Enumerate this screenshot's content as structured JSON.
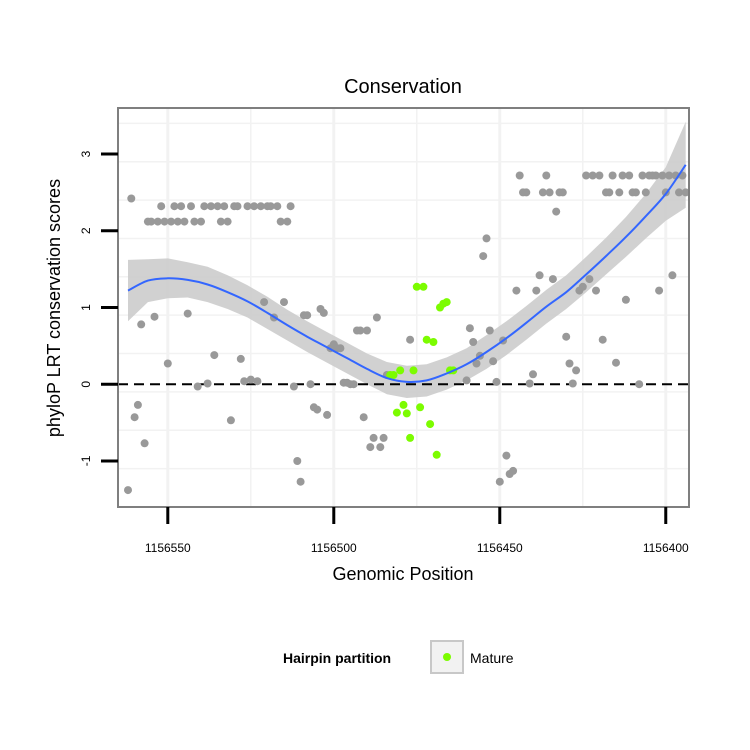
{
  "chart_data": {
    "type": "scatter",
    "title": "Conservation",
    "xlabel": "Genomic Position",
    "ylabel": "phyloP LRT conservation scores",
    "x_reversed": true,
    "xlim": [
      1156565,
      1156393
    ],
    "ylim": [
      -1.6,
      3.6
    ],
    "x_ticks": [
      1156550,
      1156500,
      1156450,
      1156400
    ],
    "x_tick_labels": [
      "1156550",
      "1156500",
      "1156450",
      "1156400"
    ],
    "y_ticks": [
      -1,
      0,
      1,
      2,
      3
    ],
    "y_tick_labels": [
      "-1",
      "0",
      "1",
      "2",
      "3"
    ],
    "reference_line": {
      "y": 0,
      "style": "dashed"
    },
    "grid": true,
    "legend": {
      "title": "Hairpin partition",
      "position": "bottom",
      "entries": [
        {
          "label": "Mature",
          "color": "#7cfc00"
        }
      ]
    },
    "colors": {
      "other": "#999999",
      "mature": "#7cfc00",
      "smooth_line": "#3366ff",
      "ribbon": "#cccccc",
      "panel_border": "#7f7f7f",
      "grid": "#f2f2f2"
    },
    "series": [
      {
        "name": "Other",
        "color": "#999999",
        "points": [
          [
            1156562,
            -1.38
          ],
          [
            1156561,
            2.42
          ],
          [
            1156560,
            -0.43
          ],
          [
            1156559,
            -0.27
          ],
          [
            1156558,
            0.78
          ],
          [
            1156557,
            -0.77
          ],
          [
            1156556,
            2.12
          ],
          [
            1156555,
            2.12
          ],
          [
            1156554,
            0.88
          ],
          [
            1156553,
            2.12
          ],
          [
            1156552,
            2.32
          ],
          [
            1156551,
            2.12
          ],
          [
            1156550,
            0.27
          ],
          [
            1156549,
            2.12
          ],
          [
            1156548,
            2.32
          ],
          [
            1156547,
            2.12
          ],
          [
            1156546,
            2.32
          ],
          [
            1156545,
            2.12
          ],
          [
            1156544,
            0.92
          ],
          [
            1156543,
            2.32
          ],
          [
            1156542,
            2.12
          ],
          [
            1156541,
            -0.03
          ],
          [
            1156540,
            2.12
          ],
          [
            1156539,
            2.32
          ],
          [
            1156538,
            0.01
          ],
          [
            1156537,
            2.32
          ],
          [
            1156536,
            0.38
          ],
          [
            1156535,
            2.32
          ],
          [
            1156534,
            2.12
          ],
          [
            1156533,
            2.32
          ],
          [
            1156532,
            2.12
          ],
          [
            1156531,
            -0.47
          ],
          [
            1156530,
            2.32
          ],
          [
            1156529,
            2.32
          ],
          [
            1156528,
            0.33
          ],
          [
            1156527,
            0.04
          ],
          [
            1156526,
            2.32
          ],
          [
            1156525,
            0.06
          ],
          [
            1156524,
            2.32
          ],
          [
            1156523,
            0.04
          ],
          [
            1156522,
            2.32
          ],
          [
            1156521,
            1.07
          ],
          [
            1156520,
            2.32
          ],
          [
            1156519,
            2.32
          ],
          [
            1156518,
            0.87
          ],
          [
            1156517,
            2.32
          ],
          [
            1156516,
            2.12
          ],
          [
            1156515,
            1.07
          ],
          [
            1156514,
            2.12
          ],
          [
            1156513,
            2.32
          ],
          [
            1156512,
            -0.03
          ],
          [
            1156511,
            -1.0
          ],
          [
            1156510,
            -1.27
          ],
          [
            1156509,
            0.9
          ],
          [
            1156508,
            0.9
          ],
          [
            1156507,
            0.0
          ],
          [
            1156506,
            -0.3
          ],
          [
            1156505,
            -0.33
          ],
          [
            1156504,
            0.98
          ],
          [
            1156503,
            0.93
          ],
          [
            1156502,
            -0.4
          ],
          [
            1156501,
            0.47
          ],
          [
            1156500,
            0.52
          ],
          [
            1156499,
            0.47
          ],
          [
            1156498,
            0.47
          ],
          [
            1156497,
            0.02
          ],
          [
            1156496,
            0.02
          ],
          [
            1156495,
            0.0
          ],
          [
            1156494,
            0.0
          ],
          [
            1156493,
            0.7
          ],
          [
            1156492,
            0.7
          ],
          [
            1156491,
            -0.43
          ],
          [
            1156490,
            0.7
          ],
          [
            1156489,
            -0.82
          ],
          [
            1156488,
            -0.7
          ],
          [
            1156487,
            0.87
          ],
          [
            1156486,
            -0.82
          ],
          [
            1156485,
            -0.7
          ],
          [
            1156484,
            0.12
          ],
          [
            1156477,
            0.58
          ],
          [
            1156454,
            1.9
          ],
          [
            1156455,
            1.67
          ],
          [
            1156456,
            0.37
          ],
          [
            1156457,
            0.27
          ],
          [
            1156458,
            0.55
          ],
          [
            1156459,
            0.73
          ],
          [
            1156460,
            0.05
          ],
          [
            1156453,
            0.7
          ],
          [
            1156452,
            0.3
          ],
          [
            1156451,
            0.03
          ],
          [
            1156450,
            -1.27
          ],
          [
            1156449,
            0.57
          ],
          [
            1156448,
            -0.93
          ],
          [
            1156447,
            -1.17
          ],
          [
            1156446,
            -1.13
          ],
          [
            1156445,
            1.22
          ],
          [
            1156444,
            2.72
          ],
          [
            1156443,
            2.5
          ],
          [
            1156442,
            2.5
          ],
          [
            1156441,
            0.01
          ],
          [
            1156440,
            0.13
          ],
          [
            1156439,
            1.22
          ],
          [
            1156438,
            1.42
          ],
          [
            1156437,
            2.5
          ],
          [
            1156436,
            2.72
          ],
          [
            1156435,
            2.5
          ],
          [
            1156434,
            1.37
          ],
          [
            1156433,
            2.25
          ],
          [
            1156432,
            2.5
          ],
          [
            1156431,
            2.5
          ],
          [
            1156430,
            0.62
          ],
          [
            1156429,
            0.27
          ],
          [
            1156428,
            0.01
          ],
          [
            1156427,
            0.18
          ],
          [
            1156426,
            1.22
          ],
          [
            1156425,
            1.27
          ],
          [
            1156424,
            2.72
          ],
          [
            1156423,
            1.37
          ],
          [
            1156422,
            2.72
          ],
          [
            1156421,
            1.22
          ],
          [
            1156420,
            2.72
          ],
          [
            1156419,
            0.58
          ],
          [
            1156418,
            2.5
          ],
          [
            1156417,
            2.5
          ],
          [
            1156416,
            2.72
          ],
          [
            1156415,
            0.28
          ],
          [
            1156414,
            2.5
          ],
          [
            1156413,
            2.72
          ],
          [
            1156412,
            1.1
          ],
          [
            1156411,
            2.72
          ],
          [
            1156410,
            2.5
          ],
          [
            1156409,
            2.5
          ],
          [
            1156408,
            0.0
          ],
          [
            1156407,
            2.72
          ],
          [
            1156406,
            2.5
          ],
          [
            1156405,
            2.72
          ],
          [
            1156404,
            2.72
          ],
          [
            1156403,
            2.72
          ],
          [
            1156402,
            1.22
          ],
          [
            1156401,
            2.72
          ],
          [
            1156400,
            2.5
          ],
          [
            1156399,
            2.72
          ],
          [
            1156398,
            1.42
          ],
          [
            1156397,
            2.72
          ],
          [
            1156396,
            2.5
          ],
          [
            1156395,
            2.72
          ],
          [
            1156394,
            2.5
          ]
        ]
      },
      {
        "name": "Mature",
        "color": "#7cfc00",
        "points": [
          [
            1156483,
            0.12
          ],
          [
            1156482,
            0.12
          ],
          [
            1156481,
            -0.37
          ],
          [
            1156480,
            0.18
          ],
          [
            1156479,
            -0.27
          ],
          [
            1156478,
            -0.38
          ],
          [
            1156477,
            -0.7
          ],
          [
            1156476,
            0.18
          ],
          [
            1156475,
            1.27
          ],
          [
            1156474,
            -0.3
          ],
          [
            1156473,
            1.27
          ],
          [
            1156472,
            0.58
          ],
          [
            1156471,
            -0.52
          ],
          [
            1156470,
            0.55
          ],
          [
            1156469,
            -0.92
          ],
          [
            1156468,
            1.0
          ],
          [
            1156467,
            1.05
          ],
          [
            1156466,
            1.07
          ],
          [
            1156465,
            0.18
          ],
          [
            1156464,
            0.18
          ]
        ]
      }
    ],
    "smooth": {
      "color": "#3366ff",
      "points": [
        [
          1156562,
          1.22,
          0.82,
          1.62
        ],
        [
          1156556,
          1.35,
          1.07,
          1.63
        ],
        [
          1156550,
          1.38,
          1.12,
          1.64
        ],
        [
          1156544,
          1.36,
          1.13,
          1.59
        ],
        [
          1156538,
          1.3,
          1.07,
          1.53
        ],
        [
          1156532,
          1.2,
          0.98,
          1.42
        ],
        [
          1156526,
          1.08,
          0.87,
          1.29
        ],
        [
          1156520,
          0.93,
          0.72,
          1.14
        ],
        [
          1156514,
          0.77,
          0.57,
          0.97
        ],
        [
          1156508,
          0.62,
          0.42,
          0.82
        ],
        [
          1156502,
          0.48,
          0.28,
          0.68
        ],
        [
          1156496,
          0.34,
          0.14,
          0.54
        ],
        [
          1156490,
          0.2,
          0.0,
          0.4
        ],
        [
          1156484,
          0.08,
          -0.13,
          0.29
        ],
        [
          1156478,
          0.03,
          -0.18,
          0.24
        ],
        [
          1156472,
          0.05,
          -0.16,
          0.26
        ],
        [
          1156466,
          0.14,
          -0.07,
          0.35
        ],
        [
          1156460,
          0.26,
          0.05,
          0.47
        ],
        [
          1156454,
          0.42,
          0.2,
          0.64
        ],
        [
          1156448,
          0.6,
          0.38,
          0.82
        ],
        [
          1156442,
          0.8,
          0.58,
          1.02
        ],
        [
          1156436,
          1.01,
          0.79,
          1.23
        ],
        [
          1156430,
          1.2,
          0.98,
          1.42
        ],
        [
          1156424,
          1.43,
          1.2,
          1.66
        ],
        [
          1156418,
          1.67,
          1.43,
          1.91
        ],
        [
          1156412,
          1.92,
          1.66,
          2.18
        ],
        [
          1156406,
          2.19,
          1.9,
          2.48
        ],
        [
          1156400,
          2.48,
          2.13,
          2.83
        ],
        [
          1156394,
          2.86,
          2.3,
          3.42
        ]
      ]
    }
  }
}
